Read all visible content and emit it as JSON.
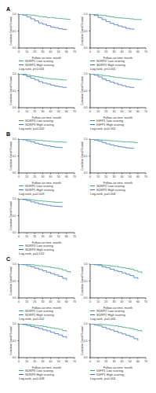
{
  "chart_data": [
    {
      "type": "line",
      "title": "A",
      "x_label": "Follow-up time, month",
      "y_label": "Cumulative Overall Survival",
      "xlim": [
        0,
        70
      ],
      "xticks": [
        0,
        10,
        20,
        30,
        40,
        50,
        60,
        70
      ],
      "ylim": [
        0,
        1
      ],
      "yticks": [
        {
          "value": 0,
          "label": "0.0"
        },
        {
          "value": 0.5,
          "label": "0.5"
        },
        {
          "value": 1,
          "label": "1.0"
        }
      ],
      "annotation": "Log-rank, p<0.001",
      "x": [
        0,
        5,
        10,
        15,
        20,
        25,
        30,
        35,
        40,
        45,
        50,
        55,
        60,
        65,
        70
      ],
      "series": [
        {
          "name": "SDRP1 Low scoring",
          "color": "#3aa676",
          "values": [
            1,
            1,
            0.98,
            0.97,
            0.95,
            0.93,
            0.92,
            0.9,
            0.9,
            0.88,
            0.87,
            0.86,
            0.85,
            0.85,
            null
          ]
        },
        {
          "name": "SDRP1 High scoring",
          "color": "#3b6fc4",
          "values": [
            1,
            0.97,
            0.92,
            0.86,
            0.8,
            0.74,
            0.7,
            0.66,
            0.62,
            0.6,
            0.57,
            0.55,
            0.53,
            null,
            null
          ]
        }
      ]
    },
    {
      "type": "line",
      "x_label": "Follow-up time, month",
      "y_label": "Cumulative Overall Survival",
      "xlim": [
        0,
        70
      ],
      "xticks": [
        0,
        10,
        20,
        30,
        40,
        50,
        60,
        70
      ],
      "ylim": [
        0,
        1
      ],
      "yticks": [
        {
          "value": 0,
          "label": "0.0"
        },
        {
          "value": 0.5,
          "label": "0.5"
        },
        {
          "value": 1,
          "label": "1.0"
        }
      ],
      "annotation": "Log-rank, p<0.001",
      "x": [
        0,
        5,
        10,
        15,
        20,
        25,
        30,
        35,
        40,
        45,
        50,
        55,
        60,
        65,
        70
      ],
      "series": [
        {
          "name": "SDRP2 Low scoring",
          "color": "#3aa676",
          "values": [
            1,
            0.99,
            0.97,
            0.96,
            0.94,
            0.92,
            0.9,
            0.89,
            0.88,
            0.87,
            0.86,
            0.84,
            0.84,
            0.84,
            null
          ]
        },
        {
          "name": "SDRP2 High scoring",
          "color": "#3b6fc4",
          "values": [
            1,
            0.96,
            0.9,
            0.84,
            0.78,
            0.73,
            0.69,
            0.65,
            0.62,
            0.58,
            0.56,
            0.54,
            null,
            null,
            null
          ]
        }
      ]
    },
    {
      "type": "line",
      "x_label": "Follow-up time, month",
      "y_label": "Cumulative Overall Survival",
      "xlim": [
        0,
        70
      ],
      "xticks": [
        0,
        10,
        20,
        30,
        40,
        50,
        60,
        70
      ],
      "ylim": [
        0,
        1
      ],
      "yticks": [
        {
          "value": 0,
          "label": "0.0"
        },
        {
          "value": 0.5,
          "label": "0.5"
        },
        {
          "value": 1,
          "label": "1.0"
        }
      ],
      "annotation": "Log-rank, p=0.002",
      "x": [
        0,
        5,
        10,
        15,
        20,
        25,
        30,
        35,
        40,
        45,
        50,
        55,
        60,
        65,
        70
      ],
      "series": [
        {
          "name": "SDRP3 Low scoring",
          "color": "#3aa676",
          "values": [
            1,
            0.99,
            0.96,
            0.94,
            0.92,
            0.9,
            0.88,
            0.86,
            0.85,
            0.84,
            0.83,
            0.82,
            0.81,
            null,
            null
          ]
        },
        {
          "name": "SDRP3 High scoring",
          "color": "#3b6fc4",
          "values": [
            1,
            0.97,
            0.92,
            0.87,
            0.82,
            0.77,
            0.73,
            0.7,
            0.67,
            0.64,
            0.62,
            0.6,
            0.59,
            null,
            null
          ]
        }
      ]
    },
    {
      "type": "line",
      "x_label": "Follow-up time, month",
      "y_label": "Cumulative Overall Survival",
      "xlim": [
        0,
        70
      ],
      "xticks": [
        0,
        10,
        20,
        30,
        40,
        50,
        60,
        70
      ],
      "ylim": [
        0,
        1
      ],
      "yticks": [
        {
          "value": 0,
          "label": "0.0"
        },
        {
          "value": 0.5,
          "label": "0.5"
        },
        {
          "value": 1,
          "label": "1.0"
        }
      ],
      "annotation": "Log-rank, p=0.001",
      "x": [
        0,
        5,
        10,
        15,
        20,
        25,
        30,
        35,
        40,
        45,
        50,
        55,
        60,
        65,
        70
      ],
      "series": [
        {
          "name": "IGFP1 Low scoring",
          "color": "#3aa676",
          "values": [
            1,
            1,
            0.97,
            0.95,
            0.94,
            0.92,
            0.9,
            0.89,
            0.87,
            0.86,
            0.85,
            0.84,
            0.83,
            0.83,
            null
          ]
        },
        {
          "name": "IGFP1 High scoring",
          "color": "#3b6fc4",
          "values": [
            1,
            0.96,
            0.91,
            0.85,
            0.8,
            0.76,
            0.72,
            0.68,
            0.65,
            0.62,
            0.6,
            0.58,
            null,
            null,
            null
          ]
        }
      ]
    },
    {
      "type": "line",
      "title": "B",
      "x_label": "Follow-up time, month",
      "y_label": "Cumulative Overall Survival",
      "xlim": [
        0,
        70
      ],
      "xticks": [
        0,
        10,
        20,
        30,
        40,
        50,
        60,
        70
      ],
      "ylim": [
        0,
        1
      ],
      "yticks": [
        {
          "value": 0,
          "label": "0.0"
        },
        {
          "value": 0.5,
          "label": "0.5"
        },
        {
          "value": 1,
          "label": "1.0"
        }
      ],
      "annotation": "Log-rank, p=0.003",
      "x": [
        0,
        5,
        10,
        15,
        20,
        25,
        30,
        35,
        40,
        45,
        50,
        55,
        60,
        65,
        70
      ],
      "series": [
        {
          "name": "SDRP1 Low scoring",
          "color": "#3aa676",
          "values": [
            1,
            1,
            0.99,
            0.98,
            0.97,
            0.96,
            0.95,
            0.94,
            0.93,
            0.92,
            0.92,
            0.91,
            0.9,
            null,
            null
          ]
        },
        {
          "name": "SDRP1 High scoring",
          "color": "#3b6fc4",
          "values": [
            1,
            0.98,
            0.95,
            0.92,
            0.88,
            0.85,
            0.82,
            0.8,
            0.78,
            0.76,
            0.75,
            0.74,
            null,
            null,
            null
          ]
        }
      ]
    },
    {
      "type": "line",
      "x_label": "Follow-up time, month",
      "y_label": "Cumulative Overall Survival",
      "xlim": [
        0,
        70
      ],
      "xticks": [
        0,
        10,
        20,
        30,
        40,
        50,
        60,
        70
      ],
      "ylim": [
        0,
        1
      ],
      "yticks": [
        {
          "value": 0,
          "label": "0.0"
        },
        {
          "value": 0.5,
          "label": "0.5"
        },
        {
          "value": 1,
          "label": "1.0"
        }
      ],
      "annotation": "Log-rank, p=0.004",
      "x": [
        0,
        5,
        10,
        15,
        20,
        25,
        30,
        35,
        40,
        45,
        50,
        55,
        60,
        65,
        70
      ],
      "series": [
        {
          "name": "SDRP2 Low scoring",
          "color": "#3aa676",
          "values": [
            1,
            1,
            0.98,
            0.97,
            0.96,
            0.95,
            0.94,
            0.93,
            0.92,
            0.92,
            0.91,
            0.9,
            0.9,
            null,
            null
          ]
        },
        {
          "name": "SDRP2 High scoring",
          "color": "#3b6fc4",
          "values": [
            1,
            0.97,
            0.94,
            0.9,
            0.86,
            0.83,
            0.8,
            0.78,
            0.76,
            0.74,
            0.73,
            0.72,
            null,
            null,
            null
          ]
        }
      ]
    },
    {
      "type": "line",
      "x_label": "Follow-up time, month",
      "y_label": "Cumulative Overall Survival",
      "xlim": [
        0,
        70
      ],
      "xticks": [
        0,
        10,
        20,
        30,
        40,
        50,
        60,
        70
      ],
      "ylim": [
        0,
        1
      ],
      "yticks": [
        {
          "value": 0,
          "label": "0.0"
        },
        {
          "value": 0.5,
          "label": "0.5"
        },
        {
          "value": 1,
          "label": "1.0"
        }
      ],
      "annotation": "Log-rank, p=0.012",
      "x": [
        0,
        5,
        10,
        15,
        20,
        25,
        30,
        35,
        40,
        45,
        50,
        55,
        60,
        65,
        70
      ],
      "series": [
        {
          "name": "SDRP3 Low scoring",
          "color": "#3aa676",
          "values": [
            1,
            0.99,
            0.98,
            0.97,
            0.95,
            0.94,
            0.93,
            0.92,
            0.91,
            0.9,
            0.9,
            0.89,
            null,
            null,
            null
          ]
        },
        {
          "name": "SDRP3 High scoring",
          "color": "#3b6fc4",
          "values": [
            1,
            0.98,
            0.95,
            0.91,
            0.88,
            0.85,
            0.83,
            0.81,
            0.79,
            0.78,
            0.77,
            0.76,
            null,
            null,
            null
          ]
        }
      ]
    },
    {
      "type": "line",
      "title": "C",
      "x_label": "Follow-up time, month",
      "y_label": "Cumulative Overall Survival",
      "xlim": [
        0,
        70
      ],
      "xticks": [
        0,
        10,
        20,
        30,
        40,
        50,
        60,
        70
      ],
      "ylim": [
        0,
        1
      ],
      "yticks": [
        {
          "value": 0,
          "label": "0.0"
        },
        {
          "value": 0.5,
          "label": "0.5"
        },
        {
          "value": 1,
          "label": "1.0"
        }
      ],
      "annotation": "Log-rank, p=0.002",
      "x": [
        0,
        5,
        10,
        15,
        20,
        25,
        30,
        35,
        40,
        45,
        50,
        55,
        60,
        65,
        70
      ],
      "series": [
        {
          "name": "SDRP1 Low scoring",
          "color": "#3aa676",
          "values": [
            1,
            1,
            0.99,
            0.98,
            0.96,
            0.95,
            0.93,
            0.92,
            0.9,
            0.88,
            0.86,
            0.82,
            0.78,
            0.74,
            null
          ]
        },
        {
          "name": "SDRP1 High scoring",
          "color": "#3b6fc4",
          "values": [
            1,
            0.98,
            0.95,
            0.92,
            0.88,
            0.84,
            0.8,
            0.76,
            0.72,
            0.68,
            0.64,
            0.58,
            0.52,
            null,
            null
          ]
        }
      ]
    },
    {
      "type": "line",
      "x_label": "Follow-up time, month",
      "y_label": "Cumulative Overall Survival",
      "xlim": [
        0,
        70
      ],
      "xticks": [
        0,
        10,
        20,
        30,
        40,
        50,
        60,
        70
      ],
      "ylim": [
        0,
        1
      ],
      "yticks": [
        {
          "value": 0,
          "label": "0.0"
        },
        {
          "value": 0.5,
          "label": "0.5"
        },
        {
          "value": 1,
          "label": "1.0"
        }
      ],
      "annotation": "Log-rank, p=0.005",
      "x": [
        0,
        5,
        10,
        15,
        20,
        25,
        30,
        35,
        40,
        45,
        50,
        55,
        60,
        65,
        70
      ],
      "series": [
        {
          "name": "SDRP2 Low scoring",
          "color": "#3aa676",
          "values": [
            1,
            1,
            0.99,
            0.97,
            0.96,
            0.94,
            0.93,
            0.91,
            0.89,
            0.87,
            0.85,
            0.81,
            0.77,
            0.72,
            null
          ]
        },
        {
          "name": "SDRP2 High scoring",
          "color": "#3b6fc4",
          "values": [
            1,
            0.98,
            0.96,
            0.92,
            0.89,
            0.85,
            0.81,
            0.78,
            0.74,
            0.7,
            0.66,
            0.6,
            0.55,
            null,
            null
          ]
        }
      ]
    },
    {
      "type": "line",
      "x_label": "Follow-up time, month",
      "y_label": "Cumulative Overall Survival",
      "xlim": [
        0,
        70
      ],
      "xticks": [
        0,
        10,
        20,
        30,
        40,
        50,
        60,
        70
      ],
      "ylim": [
        0,
        1
      ],
      "yticks": [
        {
          "value": 0,
          "label": "0.0"
        },
        {
          "value": 0.5,
          "label": "0.5"
        },
        {
          "value": 1,
          "label": "1.0"
        }
      ],
      "annotation": "Log-rank, p=0.008",
      "x": [
        0,
        5,
        10,
        15,
        20,
        25,
        30,
        35,
        40,
        45,
        50,
        55,
        60,
        65,
        70
      ],
      "series": [
        {
          "name": "SDRP3 Low scoring",
          "color": "#3aa676",
          "values": [
            1,
            0.99,
            0.98,
            0.97,
            0.95,
            0.94,
            0.92,
            0.9,
            0.88,
            0.86,
            0.84,
            0.8,
            0.76,
            null,
            null
          ]
        },
        {
          "name": "SDRP3 High scoring",
          "color": "#3b6fc4",
          "values": [
            1,
            0.98,
            0.95,
            0.92,
            0.89,
            0.86,
            0.82,
            0.79,
            0.75,
            0.71,
            0.67,
            0.62,
            0.57,
            null,
            null
          ]
        }
      ]
    },
    {
      "type": "line",
      "x_label": "Follow-up time, month",
      "y_label": "Cumulative Overall Survival",
      "xlim": [
        0,
        70
      ],
      "xticks": [
        0,
        10,
        20,
        30,
        40,
        50,
        60,
        70
      ],
      "ylim": [
        0,
        1
      ],
      "yticks": [
        {
          "value": 0,
          "label": "0.0"
        },
        {
          "value": 0.5,
          "label": "0.5"
        },
        {
          "value": 1,
          "label": "1.0"
        }
      ],
      "annotation": "Log-rank, p=0.001",
      "x": [
        0,
        5,
        10,
        15,
        20,
        25,
        30,
        35,
        40,
        45,
        50,
        55,
        60,
        65,
        70
      ],
      "series": [
        {
          "name": "IGFP1 Low scoring",
          "color": "#3aa676",
          "values": [
            1,
            1,
            0.99,
            0.98,
            0.97,
            0.95,
            0.94,
            0.92,
            0.9,
            0.88,
            0.86,
            0.83,
            0.8,
            0.76,
            null
          ]
        },
        {
          "name": "IGFP1 High scoring",
          "color": "#3b6fc4",
          "values": [
            1,
            0.97,
            0.94,
            0.9,
            0.86,
            0.82,
            0.78,
            0.74,
            0.7,
            0.66,
            0.62,
            0.56,
            0.5,
            null,
            null
          ]
        }
      ]
    }
  ]
}
